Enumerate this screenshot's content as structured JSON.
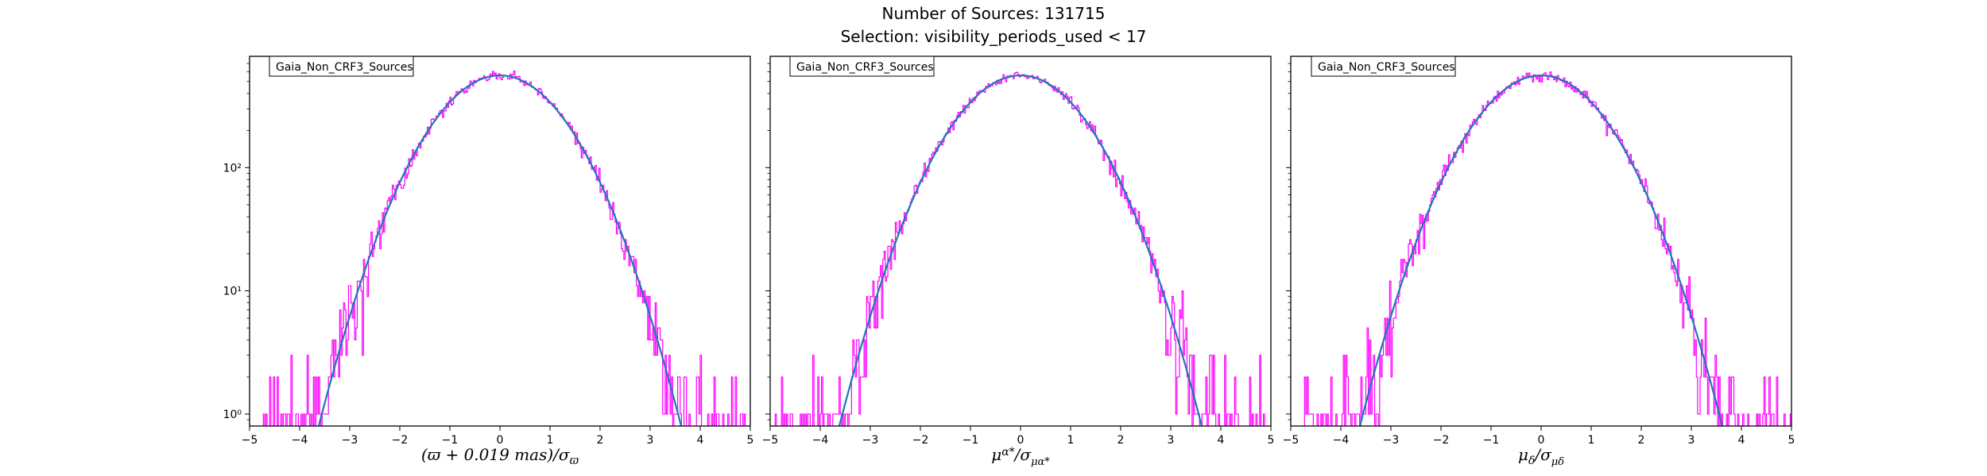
{
  "figure": {
    "title_line1": "Number of Sources: 131715",
    "title_line2": "Selection: visibility_periods_used < 17"
  },
  "colors": {
    "histogram": "#ff00ff",
    "fit": "#1f77b4",
    "axes": "#000000",
    "background": "#ffffff"
  },
  "chart_data": [
    {
      "type": "line",
      "xlabel": "(ϖ + 0.019 mas)/σ_ϖ",
      "ylabel": "",
      "legend": "Gaia_Non_CRF3_Sources",
      "legend_position": "top-left",
      "xlim": [
        -5,
        5
      ],
      "ylim": [
        0.8,
        800
      ],
      "yscale": "log",
      "grid": false,
      "xticks": [
        "−5",
        "−4",
        "−3",
        "−2",
        "−1",
        "0",
        "1",
        "2",
        "3",
        "4",
        "5"
      ],
      "yticks": [
        1,
        10,
        100
      ],
      "ytick_labels": [
        "10⁰",
        "10¹",
        "10²"
      ],
      "series": [
        {
          "kind": "histogram",
          "x_range": [
            -5,
            5
          ],
          "bin_width": 0.025,
          "peak": 560,
          "mu": 0.0,
          "sigma": 1.0
        },
        {
          "kind": "fit_curve",
          "x_range": [
            -3.7,
            3.75
          ],
          "peak": 560,
          "mu": 0.0,
          "sigma": 1.0
        }
      ]
    },
    {
      "type": "line",
      "xlabel": "μ_α*/σ_μα*",
      "ylabel": "",
      "legend": "Gaia_Non_CRF3_Sources",
      "legend_position": "top-left",
      "xlim": [
        -5,
        5
      ],
      "ylim": [
        0.8,
        800
      ],
      "yscale": "log",
      "grid": false,
      "xticks": [
        "−5",
        "−4",
        "−3",
        "−2",
        "−1",
        "0",
        "1",
        "2",
        "3",
        "4",
        "5"
      ],
      "yticks": [
        1,
        10,
        100
      ],
      "ytick_labels": [
        "10⁰",
        "10¹",
        "10²"
      ],
      "series": [
        {
          "kind": "histogram",
          "x_range": [
            -5,
            5
          ],
          "bin_width": 0.025,
          "peak": 560,
          "mu": 0.0,
          "sigma": 1.0
        },
        {
          "kind": "fit_curve",
          "x_range": [
            -3.7,
            3.7
          ],
          "peak": 560,
          "mu": 0.0,
          "sigma": 1.0
        }
      ]
    },
    {
      "type": "line",
      "xlabel": "μ_δ/σ_μδ",
      "ylabel": "",
      "legend": "Gaia_Non_CRF3_Sources",
      "legend_position": "top-left",
      "xlim": [
        -5,
        5
      ],
      "ylim": [
        0.8,
        800
      ],
      "yscale": "log",
      "grid": false,
      "xticks": [
        "−5",
        "−4",
        "−3",
        "−2",
        "−1",
        "0",
        "1",
        "2",
        "3",
        "4",
        "5"
      ],
      "yticks": [
        1,
        10,
        100
      ],
      "ytick_labels": [
        "10⁰",
        "10¹",
        "10²"
      ],
      "series": [
        {
          "kind": "histogram",
          "x_range": [
            -5,
            5
          ],
          "bin_width": 0.025,
          "peak": 560,
          "mu": 0.0,
          "sigma": 1.0
        },
        {
          "kind": "fit_curve",
          "x_range": [
            -3.8,
            3.75
          ],
          "peak": 560,
          "mu": 0.0,
          "sigma": 1.0
        }
      ]
    }
  ]
}
